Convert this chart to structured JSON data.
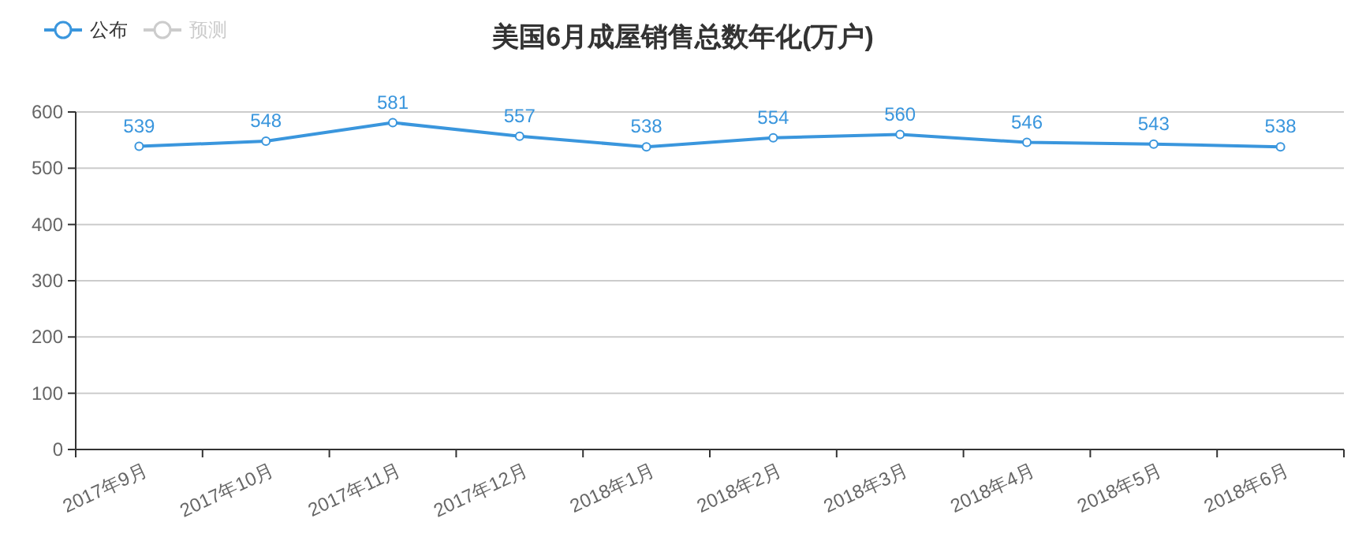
{
  "chart_data": {
    "type": "line",
    "title": "美国6月成屋销售总数年化(万户)",
    "categories": [
      "2017年9月",
      "2017年10月",
      "2017年11月",
      "2017年12月",
      "2018年1月",
      "2018年2月",
      "2018年3月",
      "2018年4月",
      "2018年5月",
      "2018年6月"
    ],
    "series": [
      {
        "name": "公布",
        "color": "#3a96dd",
        "values": [
          539,
          548,
          581,
          557,
          538,
          554,
          560,
          546,
          543,
          538
        ]
      },
      {
        "name": "预测",
        "color": "#cccccc",
        "values": [
          null,
          null,
          null,
          null,
          null,
          null,
          null,
          null,
          null,
          null
        ]
      }
    ],
    "ylim": [
      0,
      600
    ],
    "yticks": [
      0,
      100,
      200,
      300,
      400,
      500,
      600
    ],
    "grid": "y",
    "legend": "top left",
    "marker": "circle",
    "line_style": "solid",
    "data_labels": true
  }
}
